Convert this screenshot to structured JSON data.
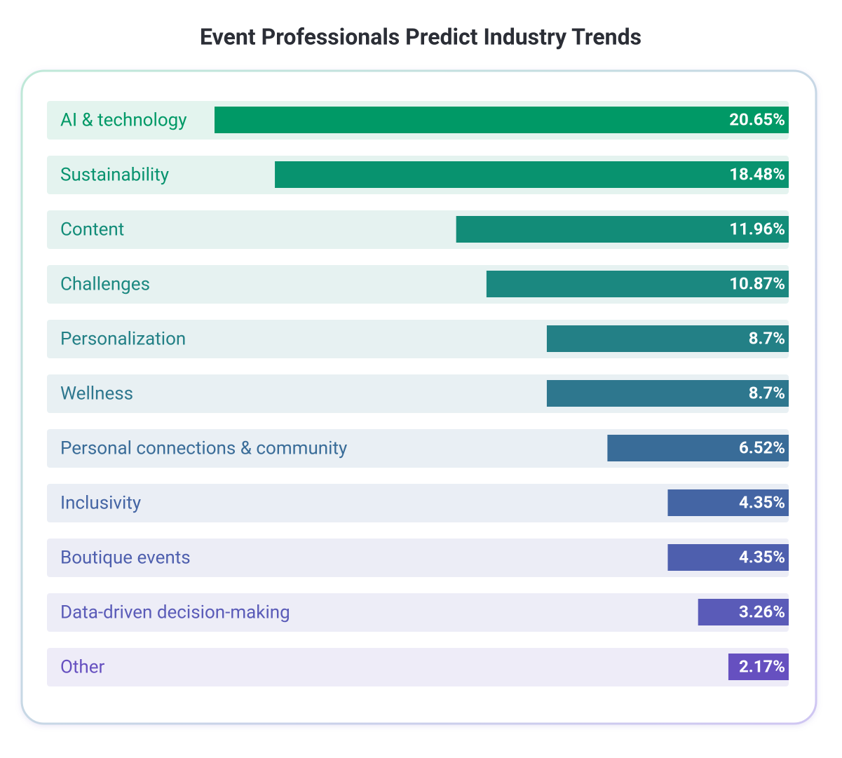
{
  "chart_data": {
    "type": "bar",
    "orientation": "horizontal",
    "title": "Event Professionals Predict Industry Trends",
    "categories": [
      "AI & technology",
      "Sustainability",
      "Content",
      "Challenges",
      "Personalization",
      "Wellness",
      "Personal connections & community",
      "Inclusivity",
      "Boutique events",
      "Data-driven decision-making",
      "Other"
    ],
    "values": [
      20.65,
      18.48,
      11.96,
      10.87,
      8.7,
      8.7,
      6.52,
      4.35,
      4.35,
      3.26,
      2.17
    ],
    "value_labels": [
      "20.65%",
      "18.48%",
      "11.96%",
      "10.87%",
      "8.7%",
      "8.7%",
      "6.52%",
      "4.35%",
      "4.35%",
      "3.26%",
      "2.17%"
    ],
    "colors": [
      "#009966",
      "#08936f",
      "#128c78",
      "#1b8880",
      "#238086",
      "#2e778e",
      "#396c98",
      "#4465a4",
      "#4e5fae",
      "#5a5bb8",
      "#6650c0"
    ]
  }
}
